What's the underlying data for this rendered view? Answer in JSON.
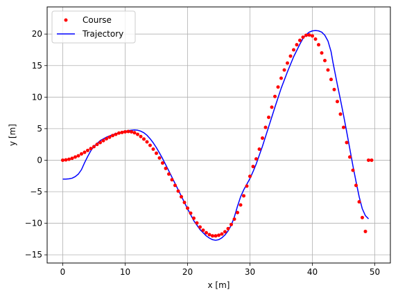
{
  "chart_data": {
    "type": "line",
    "xlabel": "x [m]",
    "ylabel": "y [m]",
    "xlim": [
      -2.5,
      52.5
    ],
    "ylim": [
      -16.3,
      24.3
    ],
    "xticks": [
      0,
      10,
      20,
      30,
      40,
      50
    ],
    "yticks": [
      -15,
      -10,
      -5,
      0,
      5,
      10,
      15,
      20
    ],
    "grid": true,
    "legend": {
      "placement": "top-left"
    },
    "series": [
      {
        "name": "Course",
        "style": "markers",
        "color": "#ff0000",
        "x": [
          0.0,
          0.5,
          1.0,
          1.5,
          2.0,
          2.5,
          3.0,
          3.5,
          4.0,
          4.5,
          5.0,
          5.5,
          6.0,
          6.5,
          7.0,
          7.5,
          8.0,
          8.5,
          9.0,
          9.5,
          10.0,
          10.5,
          11.0,
          11.5,
          12.0,
          12.5,
          13.0,
          13.5,
          14.0,
          14.5,
          15.0,
          15.5,
          16.0,
          16.5,
          17.0,
          17.5,
          18.0,
          18.5,
          19.0,
          19.5,
          20.0,
          20.5,
          21.0,
          21.5,
          22.0,
          22.5,
          23.0,
          23.5,
          24.0,
          24.5,
          25.0,
          25.5,
          26.0,
          26.5,
          27.0,
          27.5,
          28.0,
          28.5,
          29.0,
          29.5,
          30.0,
          30.5,
          31.0,
          31.5,
          32.0,
          32.5,
          33.0,
          33.5,
          34.0,
          34.5,
          35.0,
          35.5,
          36.0,
          36.5,
          37.0,
          37.5,
          38.0,
          38.5,
          39.0,
          39.5,
          40.0,
          40.5,
          41.0,
          41.5,
          42.0,
          42.5,
          43.0,
          43.5,
          44.0,
          44.5,
          45.0,
          45.5,
          46.0,
          46.5,
          47.0,
          47.5,
          48.0,
          48.5,
          49.0,
          49.5
        ],
        "y": [
          0.0,
          0.05,
          0.15,
          0.3,
          0.5,
          0.7,
          1.0,
          1.25,
          1.55,
          1.85,
          2.15,
          2.5,
          2.8,
          3.1,
          3.4,
          3.65,
          3.9,
          4.1,
          4.3,
          4.4,
          4.5,
          4.55,
          4.5,
          4.35,
          4.1,
          3.75,
          3.35,
          2.9,
          2.35,
          1.75,
          1.1,
          0.35,
          -0.45,
          -1.3,
          -2.2,
          -3.1,
          -4.0,
          -4.9,
          -5.8,
          -6.7,
          -7.6,
          -8.4,
          -9.2,
          -9.95,
          -10.6,
          -11.1,
          -11.5,
          -11.8,
          -12.0,
          -12.0,
          -11.9,
          -11.7,
          -11.35,
          -10.85,
          -10.2,
          -9.35,
          -8.3,
          -7.1,
          -5.65,
          -4.1,
          -2.55,
          -1.0,
          0.2,
          1.75,
          3.5,
          5.2,
          6.8,
          8.4,
          10.1,
          11.6,
          13.0,
          14.3,
          15.4,
          16.5,
          17.5,
          18.3,
          19.0,
          19.5,
          19.8,
          19.85,
          19.7,
          19.2,
          18.3,
          17.0,
          15.8,
          14.3,
          12.8,
          11.2,
          9.3,
          7.3,
          5.2,
          2.8,
          0.5,
          -1.6,
          -4.0,
          -6.6,
          -9.1,
          -11.3,
          0,
          0
        ]
      },
      {
        "name": "Trajectory",
        "style": "line",
        "color": "#0000ff",
        "x": [
          0.0,
          0.5,
          1.0,
          1.5,
          2.0,
          2.5,
          3.0,
          3.5,
          4.0,
          4.5,
          5.0,
          6.0,
          7.0,
          8.0,
          9.0,
          10.0,
          11.0,
          11.5,
          12.0,
          12.5,
          13.0,
          13.5,
          14.0,
          14.5,
          15.0,
          15.5,
          16.0,
          17.0,
          18.0,
          19.0,
          20.0,
          21.0,
          22.0,
          23.0,
          23.5,
          24.0,
          24.5,
          25.0,
          25.5,
          26.0,
          26.5,
          27.0,
          27.5,
          28.0,
          28.5,
          29.0,
          29.5,
          30.0,
          30.5,
          31.0,
          31.5,
          32.0,
          33.0,
          34.0,
          35.0,
          36.0,
          37.0,
          37.5,
          38.0,
          38.5,
          39.0,
          39.5,
          40.0,
          40.5,
          41.0,
          41.5,
          42.0,
          42.5,
          43.0,
          43.3,
          43.6,
          44.0,
          44.5,
          45.0,
          45.5,
          46.0,
          46.5,
          47.0,
          47.5,
          48.0,
          48.5,
          49.0
        ],
        "y": [
          -3.0,
          -3.0,
          -2.95,
          -2.85,
          -2.6,
          -2.2,
          -1.5,
          -0.4,
          0.6,
          1.5,
          2.2,
          3.1,
          3.65,
          4.05,
          4.35,
          4.6,
          4.75,
          4.8,
          4.75,
          4.6,
          4.35,
          3.95,
          3.4,
          2.75,
          2.0,
          1.15,
          0.25,
          -1.7,
          -3.7,
          -5.7,
          -7.7,
          -9.6,
          -11.0,
          -12.0,
          -12.35,
          -12.6,
          -12.7,
          -12.6,
          -12.3,
          -11.85,
          -11.2,
          -10.3,
          -9.0,
          -7.3,
          -5.8,
          -4.7,
          -3.8,
          -2.9,
          -1.8,
          -0.6,
          0.8,
          2.2,
          5.3,
          8.4,
          11.4,
          14.0,
          16.4,
          17.4,
          18.4,
          19.3,
          19.9,
          20.3,
          20.5,
          20.55,
          20.5,
          20.3,
          19.8,
          18.9,
          17.2,
          15.5,
          14.0,
          12.0,
          9.6,
          7.1,
          4.5,
          1.8,
          -0.9,
          -3.4,
          -5.8,
          -7.7,
          -8.8,
          -9.3
        ]
      }
    ]
  }
}
